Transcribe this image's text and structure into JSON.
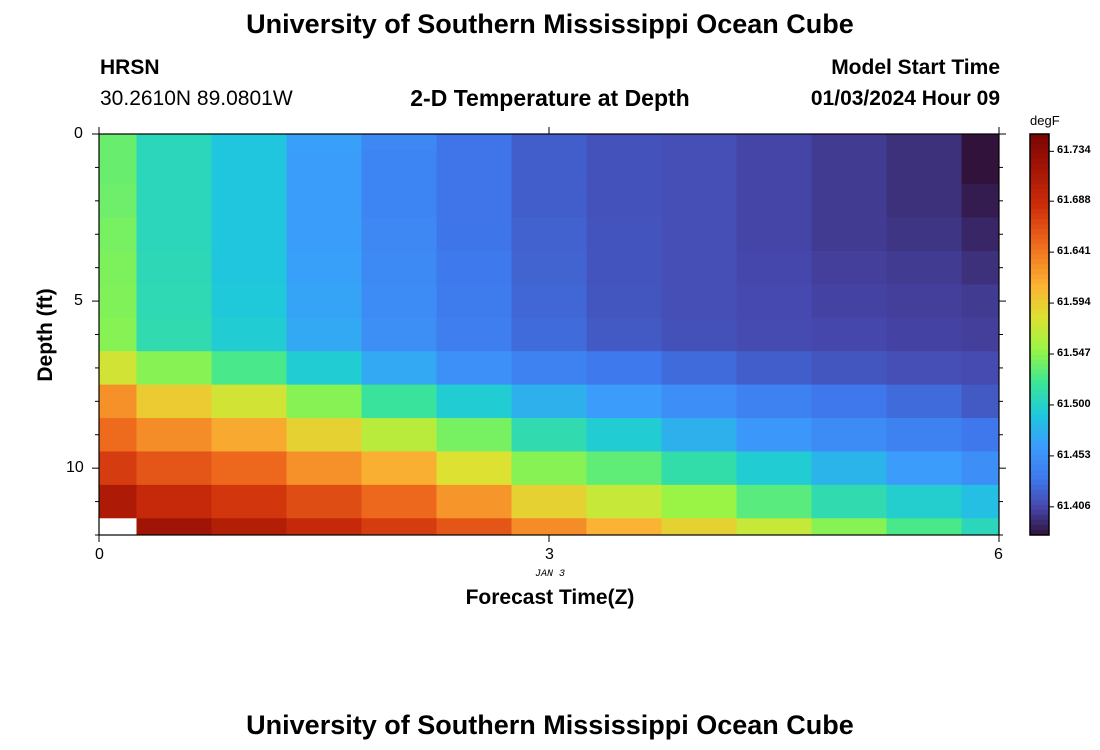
{
  "header": {
    "title": "University of Southern Mississippi Ocean Cube",
    "station": "HRSN",
    "coords": "30.2610N  89.0801W",
    "subtitle": "2-D Temperature at Depth",
    "model_label": "Model Start Time",
    "model_time": "01/03/2024 Hour 09"
  },
  "footer": {
    "title": "University of Southern Mississippi Ocean Cube"
  },
  "colorbar": {
    "unit": "degF",
    "ticks": [
      "61.734",
      "61.688",
      "61.641",
      "61.594",
      "61.547",
      "61.500",
      "61.453",
      "61.406"
    ]
  },
  "chart_data": {
    "type": "heatmap",
    "title": "2-D Temperature at Depth",
    "xlabel": "Forecast Time(Z)",
    "ylabel": "Depth (ft)",
    "x_ticks": [
      "0",
      "3",
      "6"
    ],
    "y_ticks": [
      "0",
      "5",
      "10"
    ],
    "date_label": "JAN 3",
    "xlim": [
      0,
      6
    ],
    "ylim": [
      0,
      12
    ],
    "y_inverted": true,
    "zlim": [
      61.38,
      61.75
    ],
    "unit": "degF",
    "x": [
      0,
      0.5,
      1,
      1.5,
      2,
      2.5,
      3,
      3.5,
      4,
      4.5,
      5,
      5.5,
      6
    ],
    "depths": [
      0,
      1,
      2,
      3,
      4,
      5,
      6,
      7,
      8,
      9,
      10,
      11,
      12
    ],
    "values": [
      [
        61.535,
        61.505,
        61.49,
        61.465,
        61.445,
        61.43,
        61.418,
        61.412,
        61.41,
        61.405,
        61.4,
        61.395,
        61.375
      ],
      [
        61.535,
        61.505,
        61.49,
        61.463,
        61.443,
        61.43,
        61.418,
        61.412,
        61.41,
        61.405,
        61.4,
        61.395,
        61.38
      ],
      [
        61.537,
        61.505,
        61.49,
        61.463,
        61.443,
        61.43,
        61.418,
        61.412,
        61.41,
        61.405,
        61.4,
        61.395,
        61.385
      ],
      [
        61.54,
        61.505,
        61.49,
        61.463,
        61.445,
        61.431,
        61.42,
        61.413,
        61.41,
        61.405,
        61.4,
        61.397,
        61.39
      ],
      [
        61.542,
        61.507,
        61.49,
        61.465,
        61.447,
        61.433,
        61.421,
        61.413,
        61.41,
        61.406,
        61.402,
        61.4,
        61.395
      ],
      [
        61.543,
        61.508,
        61.492,
        61.467,
        61.449,
        61.435,
        61.423,
        61.414,
        61.41,
        61.407,
        61.404,
        61.402,
        61.4
      ],
      [
        61.545,
        61.51,
        61.495,
        61.47,
        61.451,
        61.437,
        61.425,
        61.416,
        61.411,
        61.408,
        61.406,
        61.404,
        61.402
      ],
      [
        61.575,
        61.545,
        61.525,
        61.495,
        61.47,
        61.452,
        61.44,
        61.433,
        61.425,
        61.418,
        61.414,
        61.41,
        61.408
      ],
      [
        61.628,
        61.595,
        61.575,
        61.545,
        61.518,
        61.495,
        61.475,
        61.462,
        61.45,
        61.44,
        61.432,
        61.425,
        61.416
      ],
      [
        61.648,
        61.63,
        61.615,
        61.59,
        61.565,
        61.54,
        61.51,
        61.495,
        61.475,
        61.458,
        61.448,
        61.44,
        61.432
      ],
      [
        61.675,
        61.66,
        61.65,
        61.628,
        61.612,
        61.58,
        61.545,
        61.532,
        61.512,
        61.495,
        61.478,
        61.462,
        61.45
      ],
      [
        61.71,
        61.69,
        61.678,
        61.665,
        61.65,
        61.625,
        61.59,
        61.57,
        61.552,
        61.53,
        61.51,
        61.497,
        61.485
      ],
      [
        null,
        61.72,
        61.705,
        61.69,
        61.675,
        61.66,
        61.63,
        61.61,
        61.59,
        61.57,
        61.545,
        61.525,
        61.505
      ]
    ]
  }
}
